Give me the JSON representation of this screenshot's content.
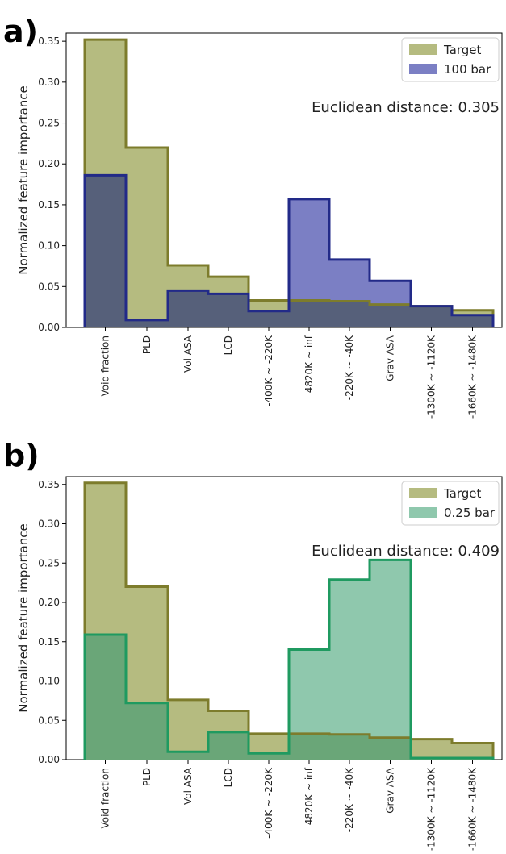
{
  "chart_data": [
    {
      "panel_label": "a)",
      "type": "bar",
      "style": "step",
      "categories": [
        "Void fraction",
        "PLD",
        "Vol ASA",
        "LCD",
        "-400K ~ -220K",
        "4820K ~ inf",
        "-220K ~ -40K",
        "Grav ASA",
        "-1300K ~ -1120K",
        "-1660K ~ -1480K"
      ],
      "series": [
        {
          "name": "Target",
          "values": [
            0.352,
            0.22,
            0.076,
            0.062,
            0.033,
            0.033,
            0.032,
            0.028,
            0.026,
            0.021
          ],
          "fill": "#b5bb80",
          "stroke": "#7d7c2c"
        },
        {
          "name": "100 bar",
          "values": [
            0.186,
            0.009,
            0.045,
            0.041,
            0.02,
            0.157,
            0.083,
            0.057,
            0.026,
            0.015
          ],
          "fill": "#7b7fc4",
          "stroke": "#222a88"
        }
      ],
      "overlap_fill": "#56607a",
      "annotation": "Euclidean distance: 0.305",
      "xlabel": "",
      "ylabel": "Normalized feature importance",
      "ylim": [
        0,
        0.36
      ],
      "yticks": [
        "0.00",
        "0.05",
        "0.10",
        "0.15",
        "0.20",
        "0.25",
        "0.30",
        "0.35"
      ],
      "legend_position": "top-right",
      "grid": false
    },
    {
      "panel_label": "b)",
      "type": "bar",
      "style": "step",
      "categories": [
        "Void fraction",
        "PLD",
        "Vol ASA",
        "LCD",
        "-400K ~ -220K",
        "4820K ~ inf",
        "-220K ~ -40K",
        "Grav ASA",
        "-1300K ~ -1120K",
        "-1660K ~ -1480K"
      ],
      "series": [
        {
          "name": "Target",
          "values": [
            0.352,
            0.22,
            0.076,
            0.062,
            0.033,
            0.033,
            0.032,
            0.028,
            0.026,
            0.021
          ],
          "fill": "#b5bb80",
          "stroke": "#7d7c2c"
        },
        {
          "name": "0.25 bar",
          "values": [
            0.159,
            0.072,
            0.01,
            0.035,
            0.008,
            0.14,
            0.229,
            0.254,
            0.002,
            0.002
          ],
          "fill": "#8fc8ad",
          "stroke": "#1f9a60"
        }
      ],
      "overlap_fill": "#6aa678",
      "annotation": "Euclidean distance: 0.409",
      "xlabel": "",
      "ylabel": "Normalized feature importance",
      "ylim": [
        0,
        0.36
      ],
      "yticks": [
        "0.00",
        "0.05",
        "0.10",
        "0.15",
        "0.20",
        "0.25",
        "0.30",
        "0.35"
      ],
      "legend_position": "top-right",
      "grid": false
    }
  ]
}
